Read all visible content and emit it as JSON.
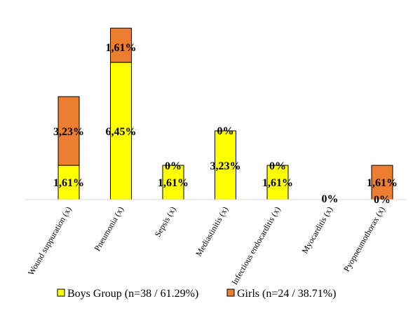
{
  "chart_data": {
    "type": "bar",
    "stacked": true,
    "categories": [
      "Wound suppuration (x)",
      "Pneumonia (x)",
      "Sepsis (x)",
      "Mediastinitis (x)",
      "Infectious endocarditis (x)",
      "Myocarditis (x)",
      "Pyopneumothorax (x)"
    ],
    "series": [
      {
        "name": "Boys Group (n=38 / 61.29%)",
        "color": "#ffff00",
        "values": [
          1.61,
          6.45,
          1.61,
          3.23,
          1.61,
          0,
          0
        ],
        "labels": [
          "1,61%",
          "6,45%",
          "1,61%",
          "3,23%",
          "1,61%",
          "",
          "0%"
        ]
      },
      {
        "name": "Girls (n=24 / 38.71%)",
        "color": "#ed7d31",
        "values": [
          3.23,
          1.61,
          0,
          0,
          0,
          0,
          1.61
        ],
        "labels": [
          "3,23%",
          "1,61%",
          "0%",
          "0%",
          "0%",
          "",
          "1,61%"
        ]
      }
    ],
    "extra_labels": [
      {
        "category": "Myocarditis (x)",
        "text": "0%"
      }
    ],
    "title": "",
    "xlabel": "",
    "ylabel": "",
    "ylim": [
      0,
      8
    ],
    "grid": false,
    "legend": "bottom"
  }
}
